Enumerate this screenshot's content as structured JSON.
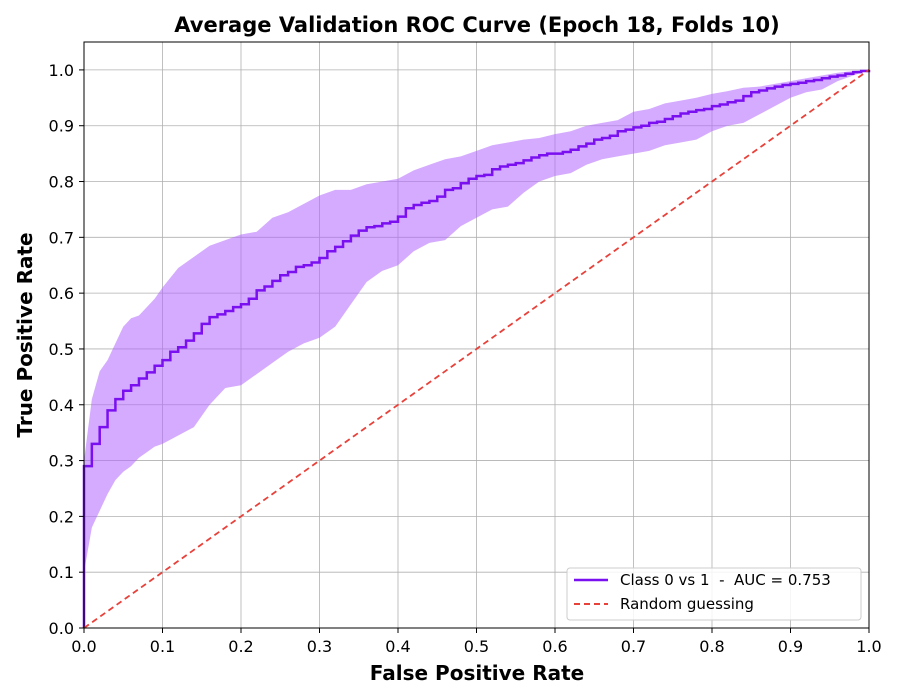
{
  "chart_data": {
    "type": "line",
    "title": "Average Validation ROC Curve (Epoch 18, Folds 10)",
    "xlabel": "False Positive Rate",
    "ylabel": "True Positive Rate",
    "xlim": [
      0.0,
      1.0
    ],
    "ylim": [
      0.0,
      1.05
    ],
    "x_ticks": [
      "0.0",
      "0.1",
      "0.2",
      "0.3",
      "0.4",
      "0.5",
      "0.6",
      "0.7",
      "0.8",
      "0.9",
      "1.0"
    ],
    "y_ticks": [
      "0.0",
      "0.1",
      "0.2",
      "0.3",
      "0.4",
      "0.5",
      "0.6",
      "0.7",
      "0.8",
      "0.9",
      "1.0"
    ],
    "grid": true,
    "legend_position": "lower-right",
    "series": [
      {
        "name": "Class 0 vs 1  -  AUC = 0.753",
        "color": "#7a0ff0",
        "style": "step",
        "x": [
          0.0,
          0.0,
          0.01,
          0.02,
          0.03,
          0.04,
          0.05,
          0.06,
          0.07,
          0.08,
          0.09,
          0.1,
          0.11,
          0.12,
          0.13,
          0.14,
          0.15,
          0.16,
          0.17,
          0.18,
          0.19,
          0.2,
          0.21,
          0.22,
          0.23,
          0.24,
          0.25,
          0.26,
          0.27,
          0.28,
          0.29,
          0.3,
          0.31,
          0.32,
          0.33,
          0.34,
          0.35,
          0.36,
          0.37,
          0.38,
          0.39,
          0.4,
          0.41,
          0.42,
          0.43,
          0.44,
          0.45,
          0.46,
          0.47,
          0.48,
          0.49,
          0.5,
          0.51,
          0.52,
          0.53,
          0.54,
          0.55,
          0.56,
          0.57,
          0.58,
          0.59,
          0.6,
          0.61,
          0.62,
          0.63,
          0.64,
          0.65,
          0.66,
          0.67,
          0.68,
          0.69,
          0.7,
          0.71,
          0.72,
          0.73,
          0.74,
          0.75,
          0.76,
          0.77,
          0.78,
          0.79,
          0.8,
          0.81,
          0.82,
          0.83,
          0.84,
          0.85,
          0.86,
          0.87,
          0.88,
          0.89,
          0.9,
          0.91,
          0.92,
          0.93,
          0.94,
          0.95,
          0.96,
          0.97,
          0.98,
          0.99,
          1.0
        ],
        "y": [
          0.0,
          0.29,
          0.33,
          0.36,
          0.39,
          0.41,
          0.425,
          0.435,
          0.447,
          0.458,
          0.47,
          0.48,
          0.495,
          0.503,
          0.515,
          0.528,
          0.545,
          0.557,
          0.562,
          0.568,
          0.575,
          0.58,
          0.59,
          0.605,
          0.612,
          0.622,
          0.632,
          0.638,
          0.647,
          0.65,
          0.655,
          0.663,
          0.675,
          0.683,
          0.693,
          0.703,
          0.712,
          0.718,
          0.72,
          0.725,
          0.728,
          0.737,
          0.752,
          0.758,
          0.762,
          0.765,
          0.773,
          0.785,
          0.788,
          0.797,
          0.805,
          0.81,
          0.812,
          0.822,
          0.827,
          0.83,
          0.833,
          0.838,
          0.843,
          0.847,
          0.85,
          0.85,
          0.853,
          0.857,
          0.863,
          0.868,
          0.875,
          0.878,
          0.882,
          0.89,
          0.893,
          0.897,
          0.9,
          0.905,
          0.907,
          0.912,
          0.917,
          0.922,
          0.925,
          0.928,
          0.93,
          0.935,
          0.938,
          0.942,
          0.945,
          0.953,
          0.96,
          0.963,
          0.967,
          0.97,
          0.973,
          0.975,
          0.977,
          0.98,
          0.982,
          0.985,
          0.988,
          0.99,
          0.993,
          0.996,
          0.998,
          1.0
        ]
      },
      {
        "name": "Random guessing",
        "color": "#e8413a",
        "style": "dashed",
        "x": [
          0.0,
          1.0
        ],
        "y": [
          0.0,
          1.0
        ]
      }
    ],
    "band": {
      "color": "#b266ff",
      "x": [
        0.0,
        0.01,
        0.02,
        0.03,
        0.04,
        0.05,
        0.06,
        0.07,
        0.08,
        0.09,
        0.1,
        0.12,
        0.14,
        0.16,
        0.18,
        0.2,
        0.22,
        0.24,
        0.26,
        0.28,
        0.3,
        0.32,
        0.34,
        0.36,
        0.38,
        0.4,
        0.42,
        0.44,
        0.46,
        0.48,
        0.5,
        0.52,
        0.54,
        0.56,
        0.58,
        0.6,
        0.62,
        0.64,
        0.66,
        0.68,
        0.7,
        0.72,
        0.74,
        0.76,
        0.78,
        0.8,
        0.82,
        0.84,
        0.86,
        0.88,
        0.9,
        0.92,
        0.94,
        0.96,
        0.98,
        1.0
      ],
      "upper": [
        0.3,
        0.41,
        0.46,
        0.48,
        0.51,
        0.54,
        0.555,
        0.56,
        0.575,
        0.59,
        0.61,
        0.645,
        0.665,
        0.685,
        0.695,
        0.705,
        0.71,
        0.735,
        0.745,
        0.76,
        0.775,
        0.785,
        0.785,
        0.795,
        0.8,
        0.805,
        0.82,
        0.83,
        0.84,
        0.845,
        0.855,
        0.865,
        0.87,
        0.875,
        0.878,
        0.885,
        0.89,
        0.9,
        0.905,
        0.91,
        0.925,
        0.93,
        0.94,
        0.945,
        0.95,
        0.957,
        0.962,
        0.968,
        0.97,
        0.975,
        0.98,
        0.985,
        0.99,
        0.995,
        0.998,
        1.0
      ],
      "lower": [
        0.1,
        0.18,
        0.21,
        0.24,
        0.265,
        0.28,
        0.29,
        0.305,
        0.315,
        0.325,
        0.33,
        0.345,
        0.36,
        0.4,
        0.43,
        0.435,
        0.455,
        0.475,
        0.495,
        0.51,
        0.52,
        0.54,
        0.58,
        0.62,
        0.64,
        0.65,
        0.675,
        0.69,
        0.695,
        0.72,
        0.735,
        0.75,
        0.755,
        0.78,
        0.8,
        0.81,
        0.815,
        0.83,
        0.84,
        0.845,
        0.85,
        0.855,
        0.865,
        0.87,
        0.875,
        0.89,
        0.9,
        0.905,
        0.92,
        0.935,
        0.95,
        0.96,
        0.965,
        0.98,
        0.99,
        1.0
      ]
    }
  },
  "legend": {
    "items": [
      {
        "label": "Class 0 vs 1  -  AUC = 0.753",
        "color": "#7a0ff0",
        "style": "solid"
      },
      {
        "label": "Random guessing",
        "color": "#e8413a",
        "style": "dashed"
      }
    ]
  }
}
